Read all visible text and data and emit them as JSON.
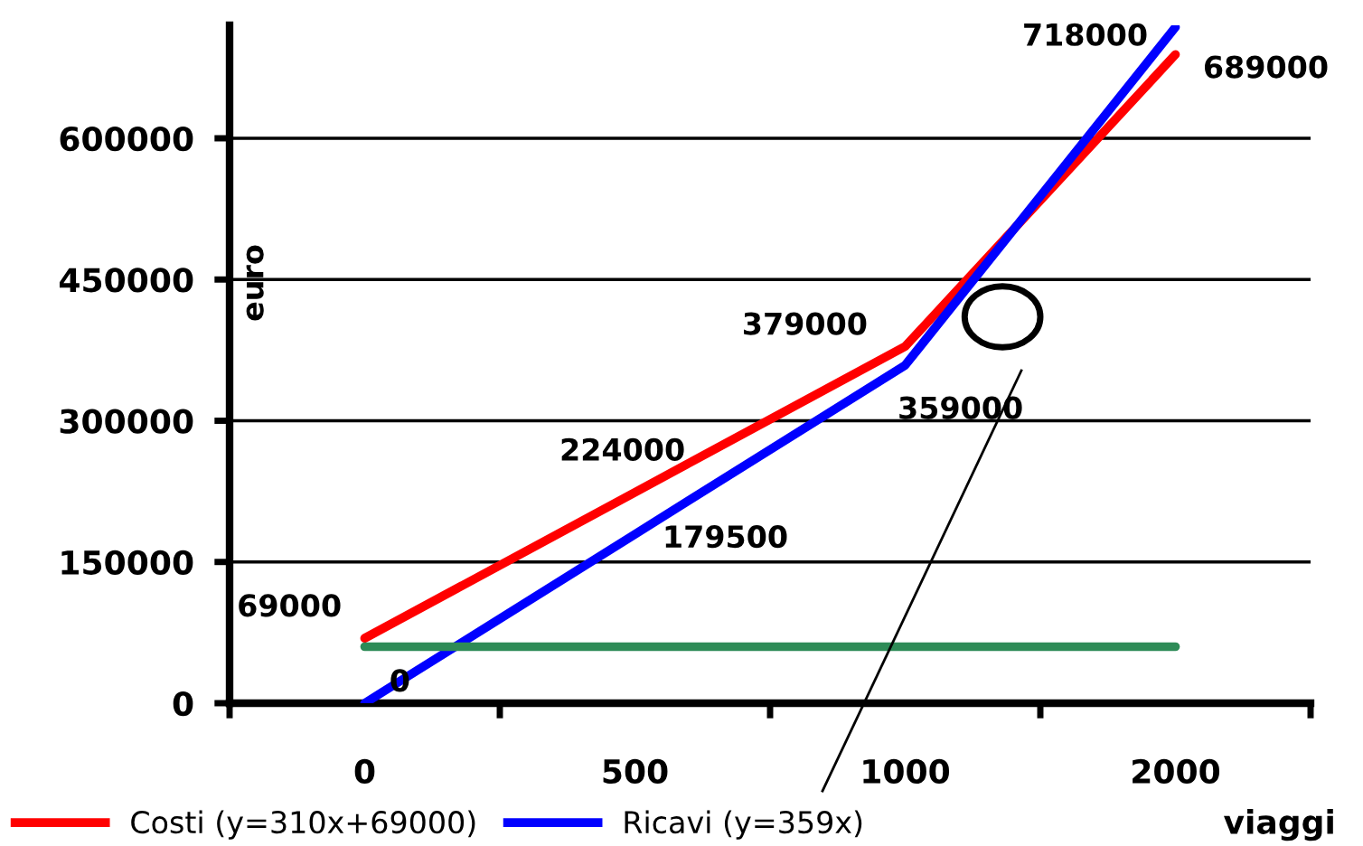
{
  "chart_data": {
    "type": "line",
    "xlabel": "viaggi",
    "ylabel": "euro",
    "categories": [
      "0",
      "500",
      "1000",
      "2000"
    ],
    "series": [
      {
        "name": "Costi (y=310x+69000)",
        "color": "#ff0000",
        "values": [
          69000,
          224000,
          379000,
          689000
        ],
        "value_labels": [
          "69000",
          "224000",
          "379000",
          "689000"
        ]
      },
      {
        "name": "Ricavi (y=359x)",
        "color": "#0000ff",
        "values": [
          0,
          179500,
          359000,
          718000
        ],
        "value_labels": [
          "0",
          "179500",
          "359000",
          "718000"
        ]
      },
      {
        "color": "#2e8b57",
        "values": [
          60000,
          60000,
          60000,
          60000
        ]
      }
    ],
    "ylim": [
      0,
      720000
    ],
    "yticks": [
      0,
      150000,
      300000,
      450000,
      600000
    ],
    "grid": "y",
    "legend": "bottom",
    "marker": "none",
    "line_style": "solid"
  }
}
